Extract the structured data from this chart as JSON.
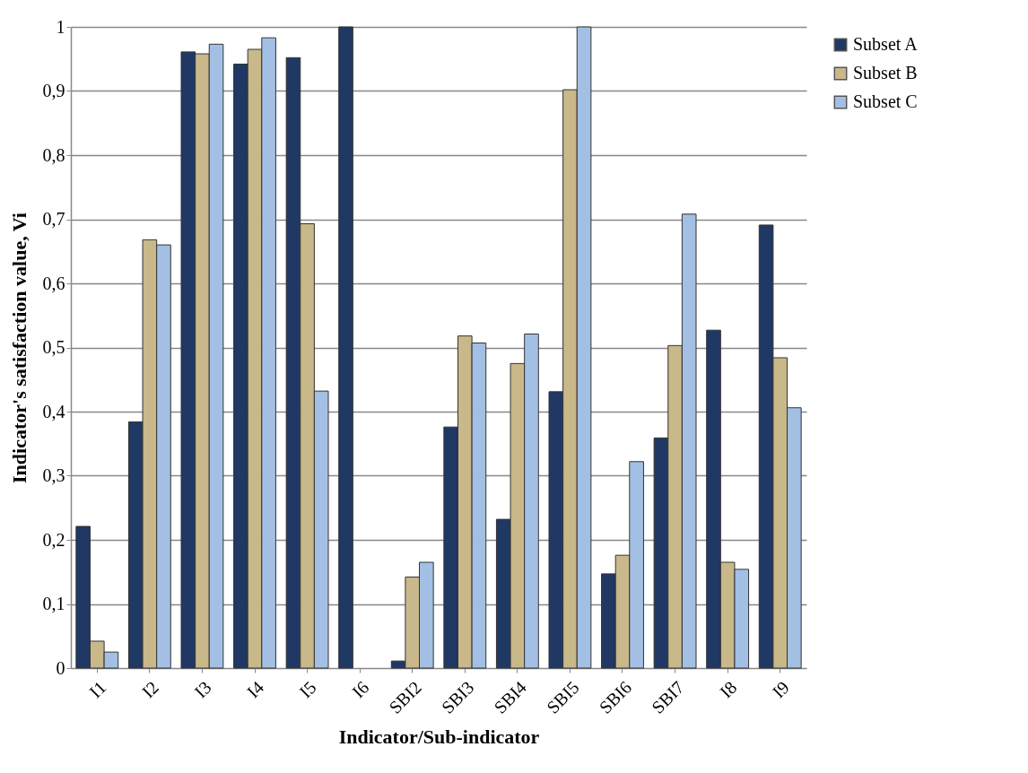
{
  "chart_data": {
    "type": "bar",
    "xlabel": "Indicator/Sub-indicator",
    "ylabel": "Indicator's satisfaction value, Vi",
    "categories": [
      "I1",
      "I2",
      "I3",
      "I4",
      "I5",
      "I6",
      "SBI2",
      "SBI3",
      "SBI4",
      "SBI5",
      "SBI6",
      "SBI7",
      "I8",
      "I9"
    ],
    "series": [
      {
        "name": "Subset A",
        "color": "#203864",
        "values": [
          0.221,
          0.384,
          0.961,
          0.942,
          0.952,
          1.0,
          0.011,
          0.376,
          0.232,
          0.431,
          0.147,
          0.359,
          0.527,
          0.691
        ]
      },
      {
        "name": "Subset B",
        "color": "#c8b88a",
        "values": [
          0.042,
          0.668,
          0.958,
          0.965,
          0.693,
          null,
          0.142,
          0.518,
          0.475,
          0.902,
          0.176,
          0.503,
          0.165,
          0.484
        ]
      },
      {
        "name": "Subset C",
        "color": "#a3c0e4",
        "values": [
          0.025,
          0.66,
          0.973,
          0.983,
          0.432,
          null,
          0.165,
          0.507,
          0.521,
          1.0,
          0.322,
          0.708,
          0.154,
          0.406
        ]
      }
    ],
    "ylim": [
      0,
      1
    ],
    "yticks": [
      0,
      {
        "value": 0.1,
        "label": "0,1"
      },
      {
        "value": 0.2,
        "label": "0,2"
      },
      {
        "value": 0.3,
        "label": "0,3"
      },
      {
        "value": 0.4,
        "label": "0,4"
      },
      {
        "value": 0.5,
        "label": "0,5"
      },
      {
        "value": 0.6,
        "label": "0,6"
      },
      {
        "value": 0.7,
        "label": "0,7"
      },
      {
        "value": 0.8,
        "label": "0,8"
      },
      {
        "value": 0.9,
        "label": "0,9"
      },
      1
    ],
    "grid": "y",
    "legend": "right"
  }
}
